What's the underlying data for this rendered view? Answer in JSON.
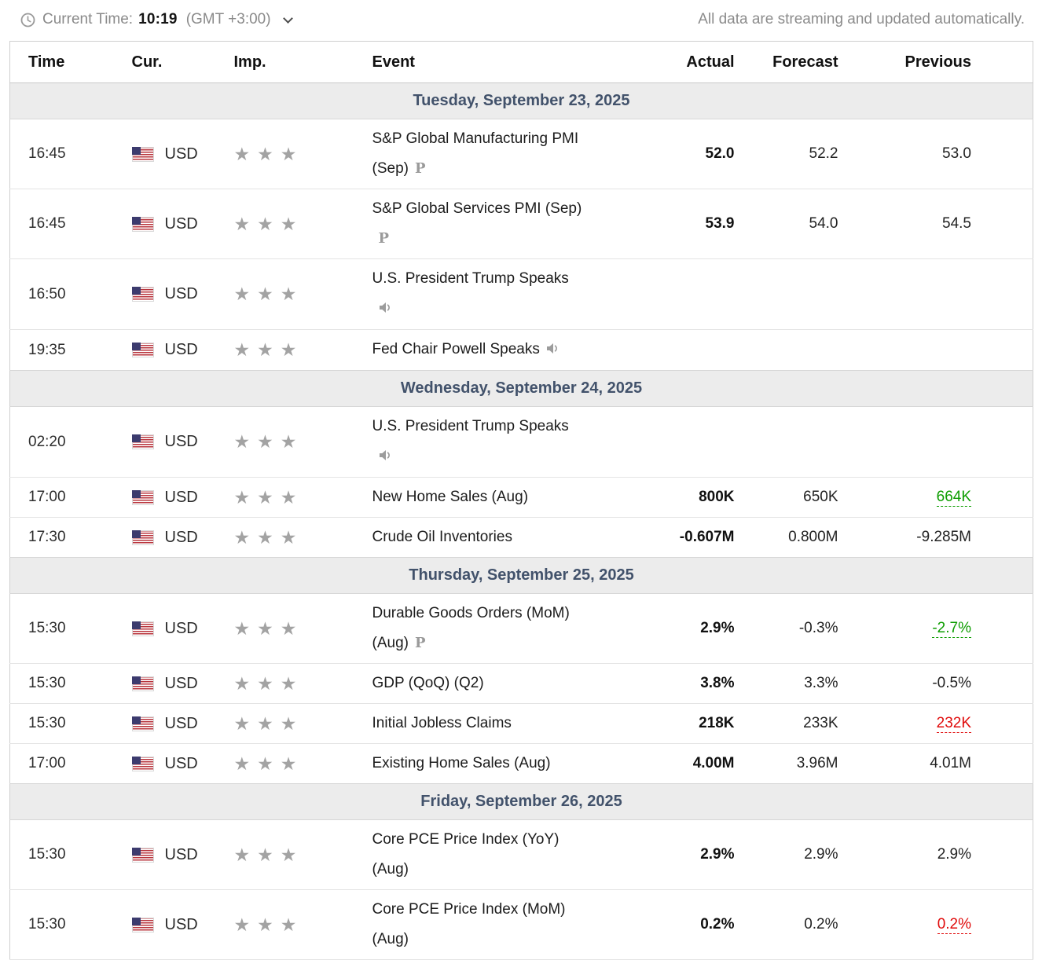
{
  "topbar": {
    "current_time_label": "Current Time:",
    "current_time": "10:19",
    "timezone": "(GMT +3:00)",
    "streaming_note": "All data are streaming and updated automatically."
  },
  "table": {
    "headers": [
      "Time",
      "Cur.",
      "Imp.",
      "Event",
      "Actual",
      "Forecast",
      "Previous"
    ]
  },
  "colors": {
    "green": "#0d9d00",
    "red": "#e00b0b",
    "day_header_bg": "#ececec",
    "day_header_text": "#42526b"
  },
  "days": [
    {
      "label": "Tuesday, September 23, 2025",
      "rows": [
        {
          "time": "16:45",
          "currency": "USD",
          "importance": 3,
          "event_lines": [
            {
              "text": "S&P Global Manufacturing PMI"
            },
            {
              "text": "(Sep)",
              "icon": "preliminary"
            }
          ],
          "actual": {
            "text": "52.0",
            "color": "red"
          },
          "forecast": {
            "text": "52.2"
          },
          "previous": {
            "text": "53.0"
          }
        },
        {
          "time": "16:45",
          "currency": "USD",
          "importance": 3,
          "event_lines": [
            {
              "text": "S&P Global Services PMI (Sep)"
            },
            {
              "text": "",
              "icon": "preliminary"
            }
          ],
          "actual": {
            "text": "53.9",
            "color": "red"
          },
          "forecast": {
            "text": "54.0"
          },
          "previous": {
            "text": "54.5"
          }
        },
        {
          "time": "16:50",
          "currency": "USD",
          "importance": 3,
          "event_lines": [
            {
              "text": "U.S. President Trump Speaks"
            },
            {
              "text": "",
              "icon": "speaker"
            }
          ],
          "actual": null,
          "forecast": null,
          "previous": null
        },
        {
          "time": "19:35",
          "currency": "USD",
          "importance": 3,
          "event_lines": [
            {
              "text": "Fed Chair Powell Speaks",
              "icon": "speaker"
            }
          ],
          "actual": null,
          "forecast": null,
          "previous": null
        }
      ]
    },
    {
      "label": "Wednesday, September 24, 2025",
      "rows": [
        {
          "time": "02:20",
          "currency": "USD",
          "importance": 3,
          "event_lines": [
            {
              "text": "U.S. President Trump Speaks"
            },
            {
              "text": "",
              "icon": "speaker"
            }
          ],
          "actual": null,
          "forecast": null,
          "previous": null
        },
        {
          "time": "17:00",
          "currency": "USD",
          "importance": 3,
          "event_lines": [
            {
              "text": "New Home Sales (Aug)"
            }
          ],
          "actual": {
            "text": "800K",
            "color": "green"
          },
          "forecast": {
            "text": "650K"
          },
          "previous": {
            "text": "664K",
            "color": "green",
            "revised": true
          }
        },
        {
          "time": "17:30",
          "currency": "USD",
          "importance": 3,
          "event_lines": [
            {
              "text": "Crude Oil Inventories"
            }
          ],
          "actual": {
            "text": "-0.607M",
            "color": "green"
          },
          "forecast": {
            "text": "0.800M"
          },
          "previous": {
            "text": "-9.285M"
          }
        }
      ]
    },
    {
      "label": "Thursday, September 25, 2025",
      "rows": [
        {
          "time": "15:30",
          "currency": "USD",
          "importance": 3,
          "event_lines": [
            {
              "text": "Durable Goods Orders (MoM)"
            },
            {
              "text": "(Aug)",
              "icon": "preliminary"
            }
          ],
          "actual": {
            "text": "2.9%",
            "color": "green"
          },
          "forecast": {
            "text": "-0.3%"
          },
          "previous": {
            "text": "-2.7%",
            "color": "green",
            "revised": true
          }
        },
        {
          "time": "15:30",
          "currency": "USD",
          "importance": 3,
          "event_lines": [
            {
              "text": "GDP (QoQ) (Q2)"
            }
          ],
          "actual": {
            "text": "3.8%",
            "color": "green"
          },
          "forecast": {
            "text": "3.3%"
          },
          "previous": {
            "text": "-0.5%"
          }
        },
        {
          "time": "15:30",
          "currency": "USD",
          "importance": 3,
          "event_lines": [
            {
              "text": "Initial Jobless Claims"
            }
          ],
          "actual": {
            "text": "218K",
            "color": "green"
          },
          "forecast": {
            "text": "233K"
          },
          "previous": {
            "text": "232K",
            "color": "red",
            "revised": true
          }
        },
        {
          "time": "17:00",
          "currency": "USD",
          "importance": 3,
          "event_lines": [
            {
              "text": "Existing Home Sales (Aug)"
            }
          ],
          "actual": {
            "text": "4.00M",
            "color": "green"
          },
          "forecast": {
            "text": "3.96M"
          },
          "previous": {
            "text": "4.01M"
          }
        }
      ]
    },
    {
      "label": "Friday, September 26, 2025",
      "rows": [
        {
          "time": "15:30",
          "currency": "USD",
          "importance": 3,
          "event_lines": [
            {
              "text": "Core PCE Price Index (YoY)"
            },
            {
              "text": "(Aug)"
            }
          ],
          "actual": {
            "text": "2.9%",
            "color": "neutral"
          },
          "forecast": {
            "text": "2.9%"
          },
          "previous": {
            "text": "2.9%"
          }
        },
        {
          "time": "15:30",
          "currency": "USD",
          "importance": 3,
          "event_lines": [
            {
              "text": "Core PCE Price Index (MoM)"
            },
            {
              "text": "(Aug)"
            }
          ],
          "actual": {
            "text": "0.2%",
            "color": "neutral"
          },
          "forecast": {
            "text": "0.2%"
          },
          "previous": {
            "text": "0.2%",
            "color": "red",
            "revised": true
          }
        }
      ]
    }
  ]
}
